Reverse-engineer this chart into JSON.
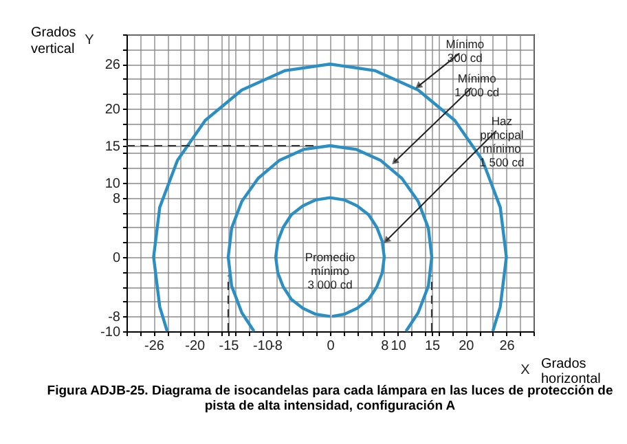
{
  "chart_data": {
    "type": "line",
    "title": "Figura ADJB-25. Diagrama de isocandelas para cada lámpara en las luces de protección de pista de alta intensidad, configuración A",
    "xlabel": "Grados horizontal",
    "ylabel": "Grados vertical",
    "xlim": [
      -30,
      30
    ],
    "ylim": [
      -10,
      30
    ],
    "xticks": [
      {
        "value": -30,
        "label": null
      },
      {
        "value": -28,
        "label": null
      },
      -26,
      {
        "value": -24,
        "label": null
      },
      {
        "value": -22,
        "label": null
      },
      -20,
      {
        "value": -18,
        "label": null
      },
      {
        "value": -16,
        "label": null
      },
      -15,
      {
        "value": -14,
        "label": null
      },
      {
        "value": -12,
        "label": null
      },
      -10,
      -8,
      {
        "value": -6,
        "label": null
      },
      {
        "value": -4,
        "label": null
      },
      {
        "value": -2,
        "label": null
      },
      0,
      {
        "value": 2,
        "label": null
      },
      {
        "value": 4,
        "label": null
      },
      {
        "value": 6,
        "label": null
      },
      8,
      10,
      {
        "value": 12,
        "label": null
      },
      {
        "value": 14,
        "label": null
      },
      15,
      {
        "value": 16,
        "label": null
      },
      {
        "value": 18,
        "label": null
      },
      20,
      {
        "value": 22,
        "label": null
      },
      {
        "value": 24,
        "label": null
      },
      26,
      {
        "value": 28,
        "label": null
      },
      {
        "value": 30,
        "label": null
      }
    ],
    "yticks": [
      -10,
      -8,
      {
        "value": -6,
        "label": null
      },
      {
        "value": -4,
        "label": null
      },
      {
        "value": -2,
        "label": null
      },
      0,
      {
        "value": 2,
        "label": null
      },
      {
        "value": 4,
        "label": null
      },
      {
        "value": 6,
        "label": null
      },
      8,
      10,
      {
        "value": 12,
        "label": null
      },
      {
        "value": 14,
        "label": null
      },
      15,
      {
        "value": 16,
        "label": null
      },
      {
        "value": 18,
        "label": null
      },
      20,
      {
        "value": 22,
        "label": null
      },
      {
        "value": 24,
        "label": null
      },
      26,
      {
        "value": 28,
        "label": null
      },
      {
        "value": 30,
        "label": null
      }
    ],
    "grid": true,
    "marker": "none",
    "line_style": "solid",
    "series": [
      {
        "color": "#2b8fc4",
        "x": [
          24.0,
          25.1,
          26,
          25.1,
          22.5,
          18.4,
          13,
          6.7,
          0,
          -6.7,
          -13,
          -18.4,
          -22.5,
          -25.1,
          -26,
          -25.1,
          -24.0
        ],
        "values": [
          -10,
          -6.7,
          0,
          6.7,
          13,
          18.4,
          22.5,
          25.1,
          26,
          25.1,
          22.5,
          18.4,
          13,
          6.7,
          0,
          -6.7,
          -10
        ]
      },
      {
        "color": "#2b8fc4",
        "x": [
          11.2,
          13,
          14.5,
          15,
          14.5,
          13,
          10.6,
          7.5,
          3.9,
          0,
          -3.9,
          -7.5,
          -10.6,
          -13,
          -14.5,
          -15,
          -14.5,
          -13,
          -11.2
        ],
        "values": [
          -10,
          -7.5,
          -3.9,
          0,
          3.9,
          7.5,
          10.6,
          13,
          14.5,
          15,
          14.5,
          13,
          10.6,
          7.5,
          3.9,
          0,
          -3.9,
          -7.5,
          -10
        ]
      },
      {
        "color": "#2b8fc4",
        "x": [
          0,
          -2.1,
          -4,
          -5.7,
          -6.9,
          -7.7,
          -8,
          -7.7,
          -6.9,
          -5.7,
          -4,
          -2.1,
          0,
          2.1,
          4,
          5.7,
          6.9,
          7.7,
          8,
          7.7,
          6.9,
          5.7,
          4,
          2.1,
          0.3
        ],
        "values": [
          -8,
          -7.7,
          -6.9,
          -5.7,
          -4,
          -2.1,
          0,
          2.1,
          4,
          5.7,
          6.9,
          7.7,
          8,
          7.7,
          6.9,
          5.7,
          4,
          2.1,
          0,
          -2.1,
          -4,
          -5.7,
          -6.9,
          -7.7,
          -8
        ]
      },
      {
        "color": "#333333",
        "line_style": "dashed",
        "x": [
          -30,
          -2
        ],
        "values": [
          15,
          15
        ]
      },
      {
        "color": "#333333",
        "line_style": "dashed",
        "x": [
          -15,
          -15
        ],
        "values": [
          -10,
          -2.5
        ]
      },
      {
        "color": "#333333",
        "line_style": "dashed",
        "x": [
          15,
          15
        ],
        "values": [
          -10,
          -2.5
        ]
      }
    ],
    "annotations": [
      {
        "text": "Mínimo\n300 cd",
        "x": 13,
        "y": 23
      },
      {
        "text": "Mínimo\n1 000 cd",
        "x": 9.5,
        "y": 12.8
      },
      {
        "text": "Haz\nprincipal\nmínimo\n1 500 cd",
        "x": 8.3,
        "y": 2.2
      },
      "Promedio\nmínimo\n3 000 cd",
      "Y",
      "X"
    ]
  }
}
